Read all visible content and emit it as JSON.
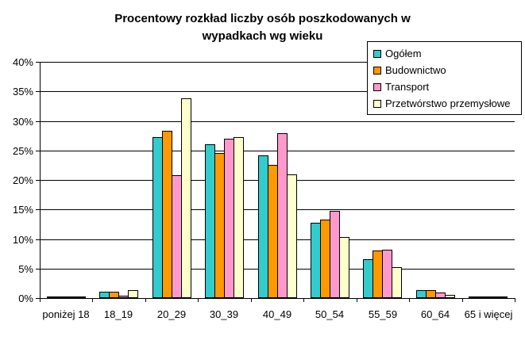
{
  "chart_data": {
    "type": "bar",
    "title": "Procentowy rozkład liczby osób poszkodowanych w wypadkach wg wieku",
    "categories": [
      "poniżej 18",
      "18_19",
      "20_29",
      "30_39",
      "40_49",
      "50_54",
      "55_59",
      "60_64",
      "65 i więcej"
    ],
    "series": [
      {
        "name": "Ogółem",
        "color": "#33CCCC",
        "values": [
          0.1,
          1.1,
          27.3,
          26.0,
          24.2,
          12.8,
          6.6,
          1.3,
          0.2
        ]
      },
      {
        "name": "Budownictwo",
        "color": "#FF9900",
        "values": [
          0.3,
          1.1,
          28.3,
          24.6,
          22.6,
          13.3,
          8.0,
          1.3,
          0.1
        ]
      },
      {
        "name": "Transport",
        "color": "#FF99CC",
        "values": [
          0.1,
          0.4,
          20.8,
          27.0,
          27.9,
          14.7,
          8.2,
          1.0,
          0.1
        ]
      },
      {
        "name": "Przetwórstwo przemysłowe",
        "color": "#FFFFCC",
        "values": [
          0.2,
          1.3,
          33.8,
          27.3,
          21.0,
          10.3,
          5.2,
          0.6,
          0.1
        ]
      }
    ],
    "ylim": [
      0,
      40
    ],
    "ytick_step": 5,
    "ytick_labels": [
      "0%",
      "5%",
      "10%",
      "15%",
      "20%",
      "25%",
      "30%",
      "35%",
      "40%"
    ],
    "xlabel": "",
    "ylabel": "",
    "grid": true,
    "legend_position": "top-right"
  }
}
